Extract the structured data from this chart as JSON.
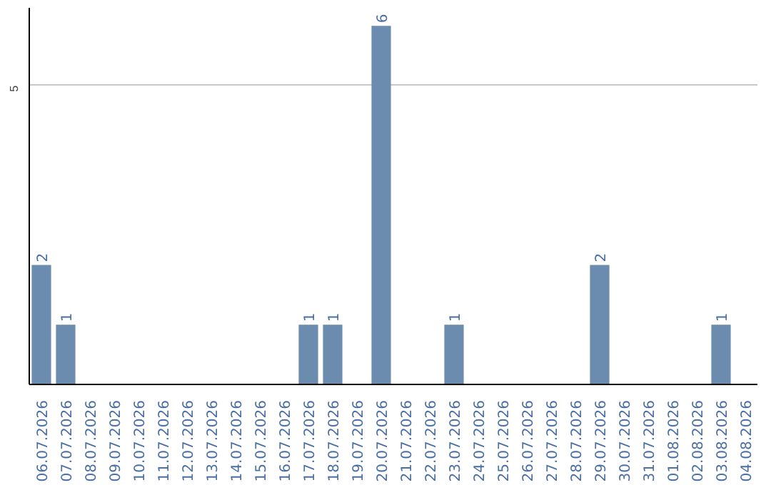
{
  "chart_data": {
    "type": "bar",
    "categories": [
      "06.07.2026",
      "07.07.2026",
      "08.07.2026",
      "09.07.2026",
      "10.07.2026",
      "11.07.2026",
      "12.07.2026",
      "13.07.2026",
      "14.07.2026",
      "15.07.2026",
      "16.07.2026",
      "17.07.2026",
      "18.07.2026",
      "19.07.2026",
      "20.07.2026",
      "21.07.2026",
      "22.07.2026",
      "23.07.2026",
      "24.07.2026",
      "25.07.2026",
      "26.07.2026",
      "27.07.2026",
      "28.07.2026",
      "29.07.2026",
      "30.07.2026",
      "31.07.2026",
      "01.08.2026",
      "02.08.2026",
      "03.08.2026",
      "04.08.2026"
    ],
    "values": [
      2,
      1,
      0,
      0,
      0,
      0,
      0,
      0,
      0,
      0,
      0,
      1,
      1,
      0,
      6,
      0,
      0,
      1,
      0,
      0,
      0,
      0,
      0,
      2,
      0,
      0,
      0,
      0,
      1,
      0
    ],
    "value_labels": [
      "2",
      "1",
      null,
      null,
      null,
      null,
      null,
      null,
      null,
      null,
      null,
      "1",
      "1",
      null,
      "6",
      null,
      null,
      "1",
      null,
      null,
      null,
      null,
      null,
      "2",
      null,
      null,
      null,
      null,
      "1",
      null
    ],
    "color": "#6b8cae",
    "ylim": [
      0,
      6.3
    ],
    "yticks": [
      5
    ],
    "grid": "y"
  }
}
